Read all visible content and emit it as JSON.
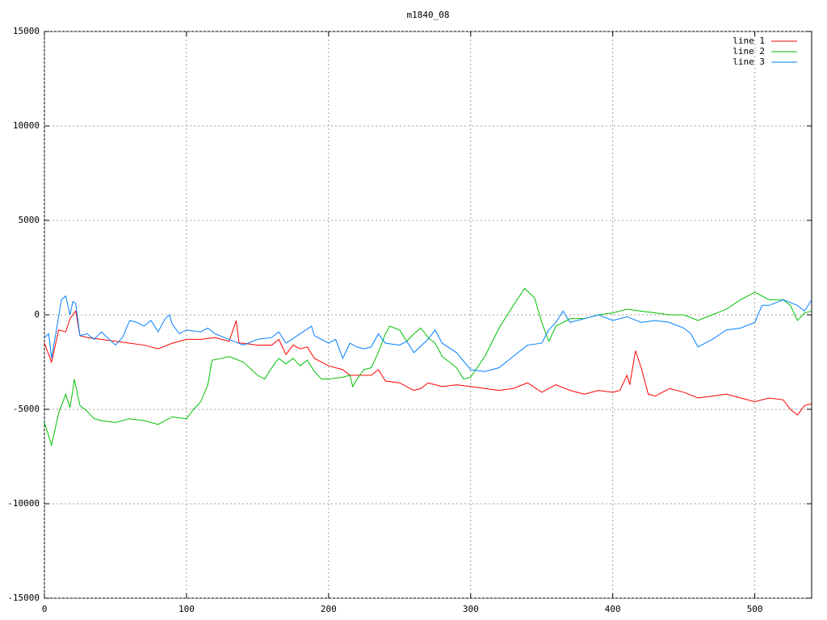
{
  "chart_data": {
    "type": "line",
    "title": "m1840_08",
    "xlim": [
      0,
      540
    ],
    "ylim": [
      -15000,
      15000
    ],
    "xticks": [
      0,
      100,
      200,
      300,
      400,
      500
    ],
    "yticks": [
      -15000,
      -10000,
      -5000,
      0,
      5000,
      10000,
      15000
    ],
    "grid": true,
    "legend": "top-right",
    "series": [
      {
        "name": "line 1",
        "color": "#ff0000",
        "x": [
          0,
          5,
          10,
          15,
          18,
          22,
          25,
          30,
          40,
          50,
          60,
          70,
          80,
          90,
          100,
          110,
          120,
          130,
          135,
          137,
          140,
          150,
          160,
          165,
          170,
          175,
          180,
          185,
          190,
          200,
          210,
          215,
          220,
          230,
          235,
          240,
          250,
          260,
          265,
          270,
          280,
          290,
          300,
          310,
          320,
          330,
          340,
          350,
          360,
          370,
          380,
          390,
          400,
          405,
          410,
          412,
          416,
          420,
          425,
          430,
          440,
          450,
          460,
          470,
          480,
          490,
          500,
          510,
          520,
          525,
          530,
          535,
          540
        ],
        "values": [
          -1500,
          -2500,
          -800,
          -900,
          -200,
          200,
          -1100,
          -1200,
          -1300,
          -1400,
          -1500,
          -1600,
          -1800,
          -1500,
          -1300,
          -1300,
          -1200,
          -1400,
          -300,
          -1500,
          -1500,
          -1600,
          -1600,
          -1300,
          -2100,
          -1600,
          -1800,
          -1700,
          -2300,
          -2700,
          -2900,
          -3200,
          -3200,
          -3200,
          -2900,
          -3500,
          -3600,
          -4000,
          -3900,
          -3600,
          -3800,
          -3700,
          -3800,
          -3900,
          -4000,
          -3900,
          -3600,
          -4100,
          -3700,
          -4000,
          -4200,
          -4000,
          -4100,
          -4000,
          -3200,
          -3700,
          -1900,
          -2800,
          -4200,
          -4300,
          -3900,
          -4100,
          -4400,
          -4300,
          -4200,
          -4400,
          -4600,
          -4400,
          -4500,
          -5000,
          -5300,
          -4800,
          -4700
        ]
      },
      {
        "name": "line 2",
        "color": "#00c000",
        "x": [
          0,
          5,
          10,
          15,
          18,
          20,
          21,
          25,
          30,
          35,
          40,
          50,
          60,
          70,
          80,
          90,
          100,
          105,
          110,
          115,
          118,
          125,
          130,
          140,
          150,
          155,
          160,
          165,
          170,
          175,
          180,
          185,
          190,
          195,
          200,
          210,
          215,
          217,
          220,
          225,
          230,
          235,
          240,
          243,
          250,
          255,
          260,
          265,
          270,
          275,
          280,
          290,
          295,
          300,
          310,
          320,
          330,
          338,
          345,
          350,
          355,
          360,
          370,
          380,
          390,
          400,
          410,
          420,
          430,
          440,
          450,
          460,
          470,
          480,
          490,
          500,
          510,
          520,
          525,
          530,
          535,
          540
        ],
        "values": [
          -5700,
          -6900,
          -5200,
          -4200,
          -4900,
          -4000,
          -3400,
          -4800,
          -5100,
          -5500,
          -5600,
          -5700,
          -5500,
          -5600,
          -5800,
          -5400,
          -5500,
          -5000,
          -4600,
          -3700,
          -2400,
          -2300,
          -2200,
          -2500,
          -3200,
          -3400,
          -2800,
          -2300,
          -2600,
          -2300,
          -2700,
          -2400,
          -3000,
          -3400,
          -3400,
          -3300,
          -3200,
          -3800,
          -3400,
          -2900,
          -2800,
          -2000,
          -1000,
          -600,
          -800,
          -1400,
          -1000,
          -700,
          -1200,
          -1500,
          -2200,
          -2800,
          -3400,
          -3300,
          -2200,
          -700,
          500,
          1400,
          900,
          -400,
          -1400,
          -600,
          -200,
          -200,
          0,
          100,
          300,
          200,
          100,
          0,
          0,
          -300,
          0,
          300,
          800,
          1200,
          800,
          800,
          500,
          -300,
          100,
          200
        ]
      },
      {
        "name": "line 3",
        "color": "#0080ff",
        "x": [
          0,
          3,
          5,
          8,
          12,
          15,
          18,
          20,
          22,
          25,
          30,
          35,
          40,
          50,
          55,
          60,
          65,
          70,
          75,
          80,
          85,
          88,
          90,
          95,
          100,
          110,
          115,
          120,
          130,
          140,
          150,
          160,
          165,
          170,
          180,
          188,
          190,
          200,
          205,
          210,
          215,
          220,
          225,
          230,
          235,
          240,
          250,
          255,
          260,
          270,
          275,
          280,
          290,
          300,
          310,
          320,
          330,
          340,
          350,
          355,
          360,
          365,
          370,
          380,
          390,
          400,
          410,
          420,
          430,
          440,
          450,
          455,
          460,
          470,
          480,
          490,
          500,
          505,
          510,
          520,
          530,
          535,
          540
        ],
        "values": [
          -1200,
          -1000,
          -2300,
          -1000,
          800,
          1000,
          0,
          700,
          600,
          -1100,
          -1000,
          -1300,
          -900,
          -1600,
          -1200,
          -300,
          -400,
          -600,
          -300,
          -900,
          -200,
          0,
          -500,
          -1000,
          -800,
          -900,
          -700,
          -1000,
          -1300,
          -1600,
          -1300,
          -1200,
          -900,
          -1500,
          -1000,
          -600,
          -1100,
          -1500,
          -1300,
          -2300,
          -1500,
          -1700,
          -1800,
          -1700,
          -1000,
          -1500,
          -1600,
          -1400,
          -2000,
          -1300,
          -800,
          -1500,
          -2000,
          -2900,
          -3000,
          -2800,
          -2200,
          -1600,
          -1500,
          -800,
          -400,
          200,
          -400,
          -200,
          0,
          -300,
          -100,
          -400,
          -300,
          -400,
          -700,
          -1000,
          -1700,
          -1300,
          -800,
          -700,
          -400,
          500,
          500,
          800,
          500,
          200,
          800
        ]
      }
    ]
  }
}
